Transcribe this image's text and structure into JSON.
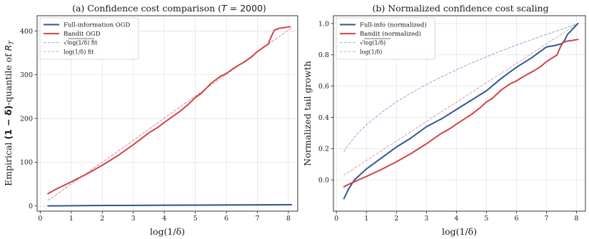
{
  "colors": {
    "full": "#2b5a93",
    "bandit": "#d04545",
    "sqrt_fit": "#7fa3d3",
    "log_fit": "#e5929f"
  },
  "chart_data": [
    {
      "type": "line",
      "title": "(a) Confidence cost comparison (T = 2000)",
      "title_parts": {
        "prefix": "(a) Confidence cost comparison (",
        "var": "T",
        "suffix": " = 2000)"
      },
      "xlabel": "log(1/δ)",
      "ylabel": "Empirical (1 − δ)-quantile of R_T",
      "ylabel_parts": {
        "prefix": "Empirical ",
        "bold": "(1 − δ)",
        "mid": "-quantile of ",
        "var": "R",
        "sub": "T"
      },
      "xlim": [
        -0.1,
        8.3
      ],
      "ylim": [
        -12,
        435
      ],
      "xticks": [
        0,
        1,
        2,
        3,
        4,
        5,
        6,
        7,
        8
      ],
      "yticks": [
        0,
        100,
        200,
        300,
        400
      ],
      "grid": true,
      "legend_position": "top-left",
      "series": [
        {
          "name": "Full-information OGD",
          "style": "solid",
          "x": [
            0.25,
            1,
            2,
            3,
            4,
            5,
            6,
            7,
            8,
            8.1
          ],
          "y": [
            0,
            0.5,
            1,
            1.3,
            1.6,
            1.9,
            2.2,
            2.5,
            2.8,
            2.9
          ]
        },
        {
          "name": "Bandit OGD",
          "style": "solid",
          "x": [
            0.25,
            0.5,
            1,
            1.5,
            2,
            2.5,
            3,
            3.5,
            3.8,
            4,
            4.5,
            4.8,
            5,
            5.2,
            5.5,
            5.8,
            6,
            6.2,
            6.4,
            6.6,
            6.8,
            7,
            7.2,
            7.35,
            7.45,
            7.55,
            7.7,
            7.9,
            8.05
          ],
          "y": [
            28,
            38,
            55,
            73,
            93,
            115,
            140,
            167,
            180,
            191,
            216,
            234,
            248,
            258,
            280,
            296,
            303,
            313,
            322,
            330,
            340,
            353,
            363,
            370,
            388,
            402,
            406,
            408,
            410
          ]
        },
        {
          "name": "√log(1/δ) fit",
          "name_parts": {
            "sqrt": "log(1/δ)",
            "suffix": " fit"
          },
          "style": "dashed",
          "x": [
            0.25,
            0.5,
            1,
            2,
            3,
            4,
            5,
            6,
            7,
            8,
            8.1
          ],
          "y": [
            13,
            25,
            50,
            100,
            150,
            201,
            251,
            301,
            352,
            402,
            407
          ]
        },
        {
          "name": "log(1/δ) fit",
          "style": "dashed",
          "x": [
            0.25,
            0.5,
            1,
            2,
            3,
            4,
            5,
            6,
            7,
            8,
            8.1
          ],
          "y": [
            13,
            25,
            50,
            100,
            150,
            201,
            251,
            301,
            352,
            402,
            407
          ]
        }
      ]
    },
    {
      "type": "line",
      "title": "(b) Normalized confidence cost scaling",
      "xlabel": "log(1/δ)",
      "ylabel": "Normalized tail growth",
      "xlim": [
        -0.1,
        8.3
      ],
      "ylim": [
        -0.2,
        1.05
      ],
      "xticks": [
        0,
        1,
        2,
        3,
        4,
        5,
        6,
        7,
        8
      ],
      "yticks": [
        0.0,
        0.2,
        0.4,
        0.6,
        0.8,
        1.0
      ],
      "ytick_labels": [
        "0.0",
        "0.2",
        "0.4",
        "0.6",
        "0.8",
        "1.0"
      ],
      "grid": true,
      "legend_position": "top-left",
      "series": [
        {
          "name": "Full-info (normalized)",
          "style": "solid",
          "x": [
            0.25,
            0.4,
            0.6,
            1,
            1.5,
            2,
            2.5,
            3,
            3.5,
            4,
            4.5,
            5,
            5.5,
            6,
            6.5,
            7,
            7.3,
            7.5,
            7.6,
            7.7,
            7.8,
            8,
            8.05
          ],
          "y": [
            -0.12,
            -0.06,
            0.0,
            0.07,
            0.14,
            0.21,
            0.27,
            0.34,
            0.39,
            0.45,
            0.51,
            0.57,
            0.65,
            0.72,
            0.78,
            0.85,
            0.86,
            0.87,
            0.89,
            0.93,
            0.95,
            0.99,
            1.0
          ]
        },
        {
          "name": "Bandit (normalized)",
          "style": "solid",
          "x": [
            0.25,
            0.5,
            1,
            1.5,
            2,
            2.5,
            3,
            3.5,
            3.8,
            4,
            4.5,
            4.8,
            5,
            5.2,
            5.5,
            5.8,
            6,
            6.2,
            6.4,
            6.6,
            6.8,
            7,
            7.2,
            7.35,
            7.45,
            7.55,
            7.7,
            7.9,
            8.05
          ],
          "y": [
            -0.044,
            -0.02,
            0.022,
            0.067,
            0.116,
            0.17,
            0.231,
            0.298,
            0.33,
            0.357,
            0.419,
            0.463,
            0.498,
            0.522,
            0.576,
            0.615,
            0.633,
            0.657,
            0.679,
            0.699,
            0.724,
            0.756,
            0.781,
            0.798,
            0.843,
            0.878,
            0.888,
            0.893,
            0.898
          ]
        },
        {
          "name": "√log(1/δ)",
          "name_parts": {
            "sqrt": "log(1/δ)",
            "suffix": ""
          },
          "style": "dashed",
          "x": [
            0.25,
            0.4,
            0.6,
            0.8,
            1,
            1.5,
            2,
            2.5,
            3,
            3.5,
            4,
            4.5,
            5,
            5.5,
            6,
            6.5,
            7,
            7.5,
            8,
            8.05
          ],
          "y": [
            0.18,
            0.223,
            0.273,
            0.315,
            0.352,
            0.431,
            0.498,
            0.557,
            0.61,
            0.659,
            0.704,
            0.747,
            0.787,
            0.826,
            0.862,
            0.897,
            0.931,
            0.963,
            0.995,
            1.0
          ]
        },
        {
          "name": "log(1/δ)",
          "style": "dashed",
          "x": [
            0.25,
            1,
            2,
            3,
            4,
            5,
            6,
            7,
            8,
            8.05
          ],
          "y": [
            0.031,
            0.124,
            0.248,
            0.373,
            0.497,
            0.621,
            0.745,
            0.87,
            0.994,
            1.0
          ]
        }
      ]
    }
  ]
}
